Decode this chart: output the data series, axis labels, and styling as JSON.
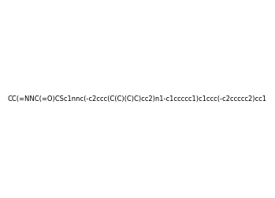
{
  "smiles": "CC(=NNC(=O)CSc1nnc(-c2ccc(C(C)(C)C)cc2)n1-c1ccccc1)c1ccc(-c2ccccc2)cc1",
  "image_size": 300,
  "background_color": "#e8e8e8",
  "title": ""
}
